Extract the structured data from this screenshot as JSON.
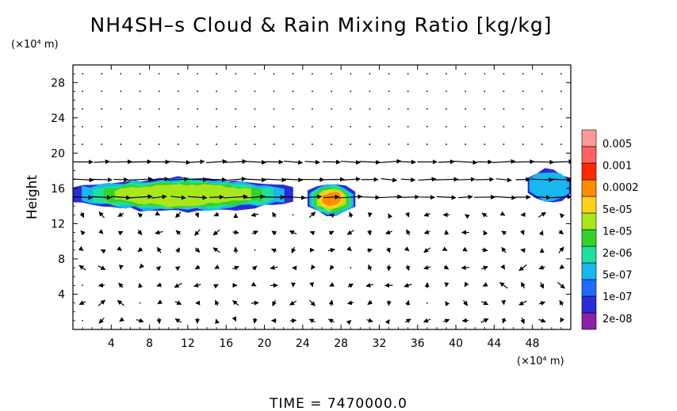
{
  "chart_data": {
    "type": "heatmap",
    "title": "NH4SH–s Cloud & Rain Mixing Ratio [kg/kg]",
    "ylabel": "Height",
    "y_unit": "(×10⁴ m)",
    "x_unit": "(×10⁴ m)",
    "xlim": [
      0,
      52
    ],
    "ylim": [
      0,
      30
    ],
    "x_ticks": [
      "4",
      "8",
      "12",
      "16",
      "20",
      "24",
      "28",
      "32",
      "36",
      "40",
      "44",
      "48"
    ],
    "y_ticks": [
      "4",
      "8",
      "12",
      "16",
      "20",
      "24",
      "28"
    ],
    "x_tick_values": [
      4,
      8,
      12,
      16,
      20,
      24,
      28,
      32,
      36,
      40,
      44,
      48
    ],
    "y_tick_values": [
      4,
      8,
      12,
      16,
      20,
      24,
      28
    ],
    "colorbar": {
      "labels": [
        "0.005",
        "0.001",
        "0.0002",
        "5e-05",
        "1e-05",
        "2e-06",
        "5e-07",
        "1e-07",
        "2e-08"
      ],
      "colors": [
        "#8b1fa8",
        "#2b2bd8",
        "#1f6bff",
        "#18b7f0",
        "#1de0a0",
        "#34d12a",
        "#a9e61c",
        "#ffd21a",
        "#ff8c00",
        "#ff2a00",
        "#ff6060",
        "#ff9a9a"
      ]
    },
    "cloud_regions": [
      {
        "x": [
          0,
          23
        ],
        "y": [
          13.5,
          17
        ],
        "peak": "5e-05"
      },
      {
        "x": [
          24.5,
          29.5
        ],
        "y": [
          13,
          16.5
        ],
        "peak": "0.0002"
      },
      {
        "x": [
          47.5,
          52
        ],
        "y": [
          14.5,
          18
        ],
        "peak": "5e-07"
      }
    ],
    "wind_field": "wind vectors (arrows) overlaid on the cloud field",
    "footer": "TIME  =  7470000.0"
  }
}
